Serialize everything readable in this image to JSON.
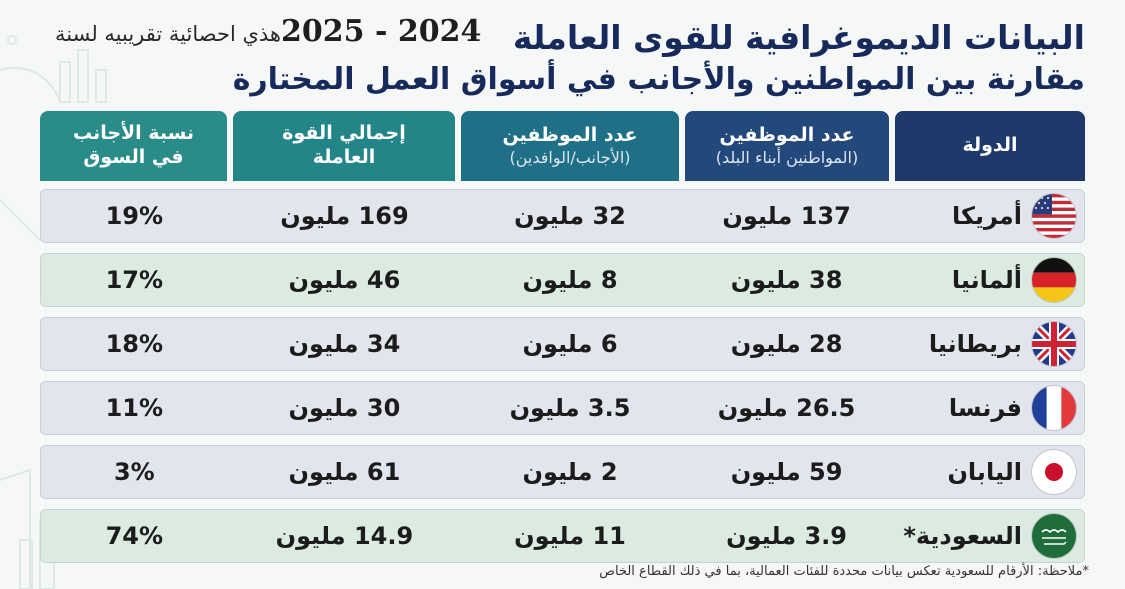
{
  "header": {
    "year_label": "2024 - 2025",
    "year_note": "هذي احصائية تقريبيه لسنة",
    "title": "البيانات الديموغرافية للقوى العاملة",
    "subtitle": "مقارنة بين المواطنين والأجانب في أسواق العمل المختارة"
  },
  "table": {
    "columns": {
      "country": "الدولة",
      "nationals": "عدد الموظفين",
      "nationals_sub": "(المواطنين أبناء البلد)",
      "foreigners": "عدد الموظفين",
      "foreigners_sub": "(الأجانب/الوافدين)",
      "total_line1": "إجمالي القوة",
      "total_line2": "العاملة",
      "pct_line1": "نسبة الأجانب",
      "pct_line2": "في السوق"
    },
    "rows": [
      {
        "country": "أمريكا",
        "flag": "usa-flag-icon",
        "nationals": "137 مليون",
        "foreigners": "32 مليون",
        "total": "169 مليون",
        "pct": "19%"
      },
      {
        "country": "ألمانيا",
        "flag": "germany-flag-icon",
        "nationals": "38 مليون",
        "foreigners": "8 مليون",
        "total": "46 مليون",
        "pct": "17%"
      },
      {
        "country": "بريطانيا",
        "flag": "uk-flag-icon",
        "nationals": "28 مليون",
        "foreigners": "6 مليون",
        "total": "34 مليون",
        "pct": "18%"
      },
      {
        "country": "فرنسا",
        "flag": "france-flag-icon",
        "nationals": "26.5 مليون",
        "foreigners": "3.5 مليون",
        "total": "30 مليون",
        "pct": "11%"
      },
      {
        "country": "اليابان",
        "flag": "japan-flag-icon",
        "nationals": "59 مليون",
        "foreigners": "2 مليون",
        "total": "61 مليون",
        "pct": "3%"
      },
      {
        "country": "السعودية*",
        "flag": "saudi-flag-icon",
        "nationals": "3.9 مليون",
        "foreigners": "11 مليون",
        "total": "14.9 مليون",
        "pct": "74%"
      }
    ]
  },
  "footnote": "*ملاحظة: الأرقام للسعودية تعكس بيانات محددة للفئات العمالية، بما في ذلك القطاع الخاص",
  "colors": {
    "title": "#172a5c",
    "header_country": "#1e3a6b",
    "header_teal": "#238587",
    "row_odd": "#e3e5ee",
    "row_even": "#dcebe2"
  }
}
